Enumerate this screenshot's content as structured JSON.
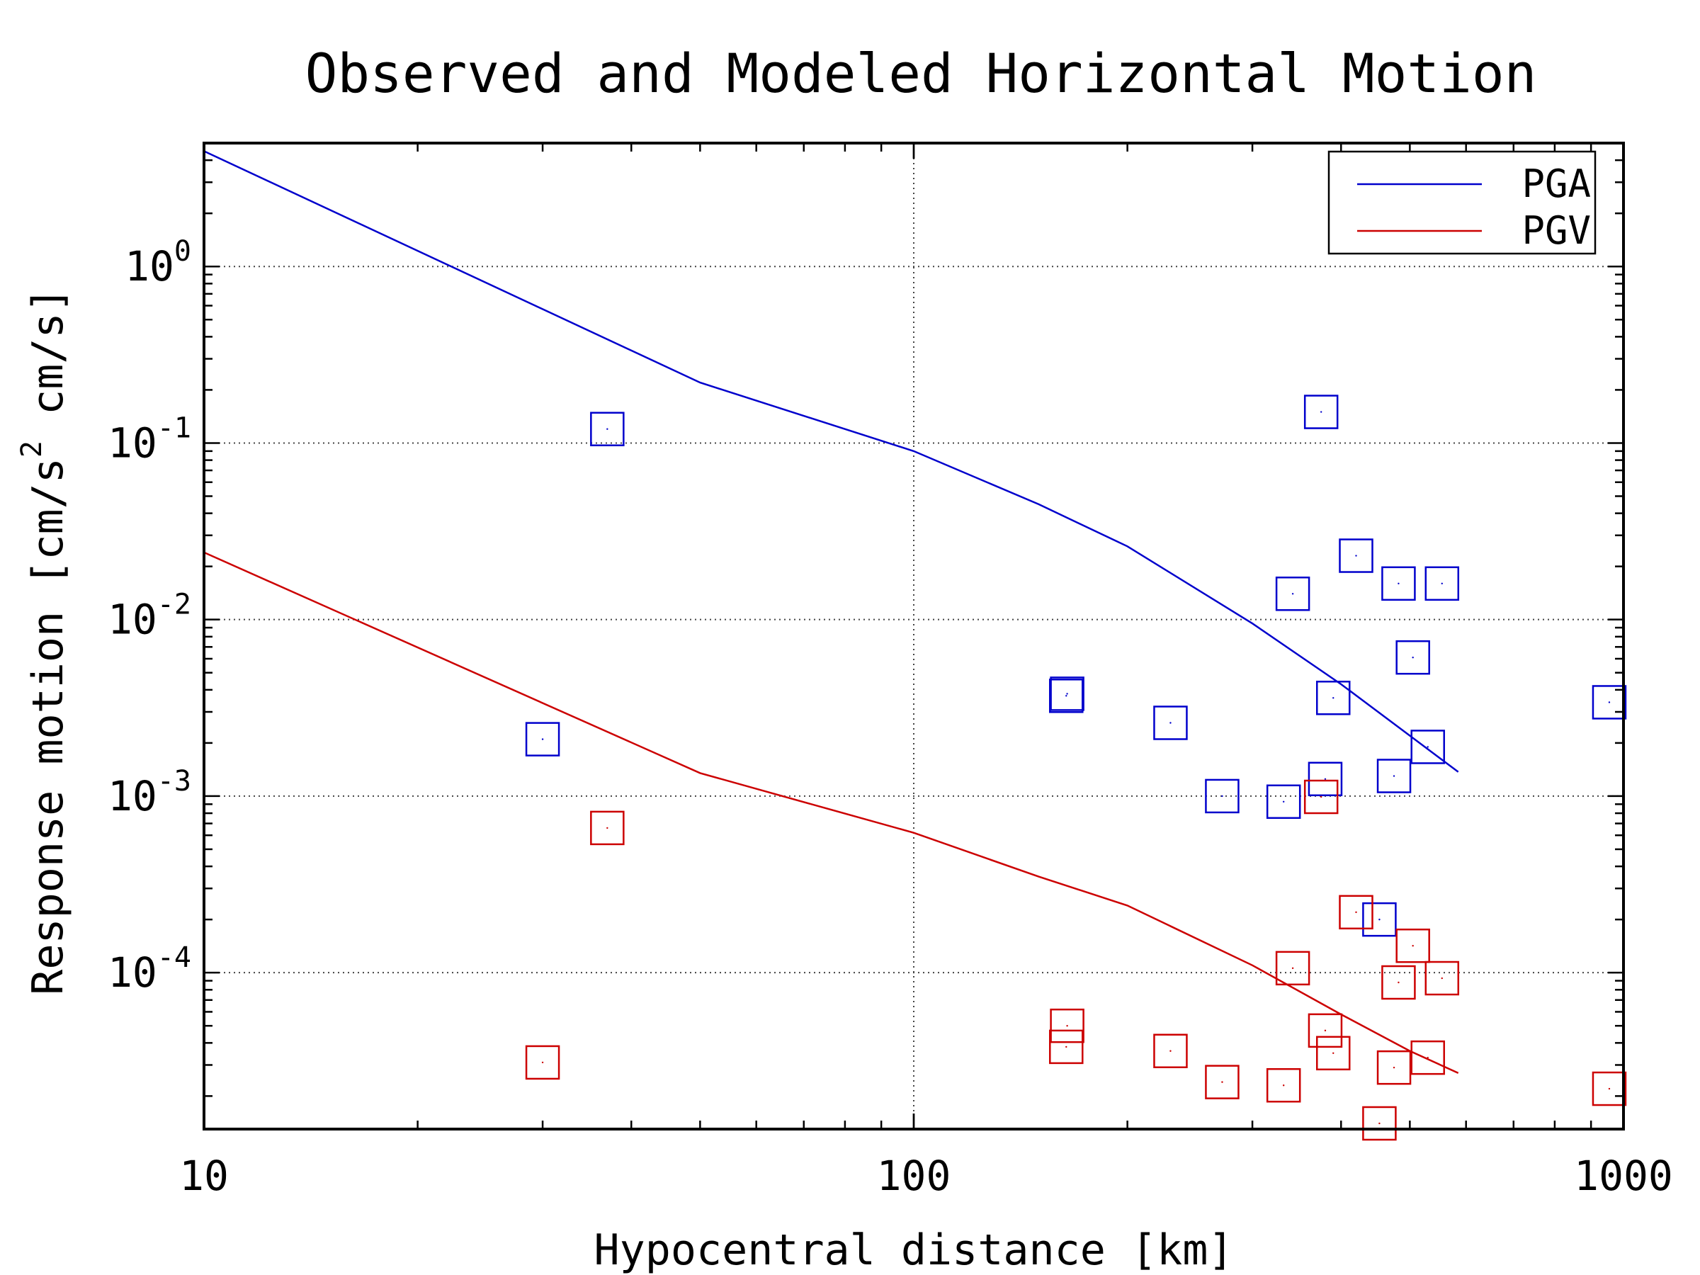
{
  "chart_data": {
    "type": "scatter",
    "title": "Observed and Modeled Horizontal Motion",
    "xlabel": "Hypocentral distance [km]",
    "ylabel_parts": [
      "Response motion [cm/s",
      "2",
      " cm/s]"
    ],
    "xscale": "log",
    "yscale": "log",
    "xlim": [
      10,
      1000
    ],
    "ylim": [
      1.3e-05,
      5
    ],
    "x_ticks": [
      {
        "value": 10,
        "label": "10"
      },
      {
        "value": 100,
        "label": "100"
      },
      {
        "value": 1000,
        "label": "1000"
      }
    ],
    "y_ticks": [
      {
        "value": 1,
        "base": "10",
        "exp": "0"
      },
      {
        "value": 0.1,
        "base": "10",
        "exp": "-1"
      },
      {
        "value": 0.01,
        "base": "10",
        "exp": "-2"
      },
      {
        "value": 0.001,
        "base": "10",
        "exp": "-3"
      },
      {
        "value": 0.0001,
        "base": "10",
        "exp": "-4"
      }
    ],
    "grid": true,
    "legend_position": "top-right",
    "series": [
      {
        "name": "PGA",
        "color": "#0000cc",
        "model_curve": [
          {
            "x": 10,
            "y": 4.5
          },
          {
            "x": 50,
            "y": 0.22
          },
          {
            "x": 100,
            "y": 0.09
          },
          {
            "x": 150,
            "y": 0.045
          },
          {
            "x": 200,
            "y": 0.026
          },
          {
            "x": 300,
            "y": 0.0095
          },
          {
            "x": 400,
            "y": 0.0043
          },
          {
            "x": 500,
            "y": 0.0022
          },
          {
            "x": 585,
            "y": 0.00137
          }
        ],
        "observed": [
          {
            "x": 30,
            "y": 0.0021
          },
          {
            "x": 37,
            "y": 0.12
          },
          {
            "x": 164,
            "y": 0.0037
          },
          {
            "x": 164.5,
            "y": 0.0038
          },
          {
            "x": 230,
            "y": 0.0026
          },
          {
            "x": 272,
            "y": 0.001
          },
          {
            "x": 332,
            "y": 0.00093
          },
          {
            "x": 342,
            "y": 0.014
          },
          {
            "x": 375,
            "y": 0.15
          },
          {
            "x": 380,
            "y": 0.00125
          },
          {
            "x": 390,
            "y": 0.0036
          },
          {
            "x": 420,
            "y": 0.023
          },
          {
            "x": 453,
            "y": 0.0002
          },
          {
            "x": 475,
            "y": 0.0013
          },
          {
            "x": 482,
            "y": 0.016
          },
          {
            "x": 505,
            "y": 0.0061
          },
          {
            "x": 530,
            "y": 0.0019
          },
          {
            "x": 555,
            "y": 0.016
          },
          {
            "x": 955,
            "y": 0.0034
          }
        ]
      },
      {
        "name": "PGV",
        "color": "#cc0000",
        "model_curve": [
          {
            "x": 10,
            "y": 0.024
          },
          {
            "x": 50,
            "y": 0.00135
          },
          {
            "x": 100,
            "y": 0.00062
          },
          {
            "x": 150,
            "y": 0.00035
          },
          {
            "x": 200,
            "y": 0.00024
          },
          {
            "x": 300,
            "y": 0.00011
          },
          {
            "x": 400,
            "y": 5.8e-05
          },
          {
            "x": 500,
            "y": 3.6e-05
          },
          {
            "x": 585,
            "y": 2.7e-05
          }
        ],
        "observed": [
          {
            "x": 30,
            "y": 3.1e-05
          },
          {
            "x": 37,
            "y": 0.00066
          },
          {
            "x": 164,
            "y": 3.8e-05
          },
          {
            "x": 164.5,
            "y": 5e-05
          },
          {
            "x": 230,
            "y": 3.6e-05
          },
          {
            "x": 272,
            "y": 2.4e-05
          },
          {
            "x": 332,
            "y": 2.3e-05
          },
          {
            "x": 342,
            "y": 0.000106
          },
          {
            "x": 375,
            "y": 0.00099
          },
          {
            "x": 380,
            "y": 4.7e-05
          },
          {
            "x": 390,
            "y": 3.5e-05
          },
          {
            "x": 420,
            "y": 0.00022
          },
          {
            "x": 453,
            "y": 1.4e-05
          },
          {
            "x": 475,
            "y": 2.9e-05
          },
          {
            "x": 482,
            "y": 8.8e-05
          },
          {
            "x": 505,
            "y": 0.000142
          },
          {
            "x": 530,
            "y": 3.3e-05
          },
          {
            "x": 555,
            "y": 9.3e-05
          },
          {
            "x": 955,
            "y": 2.2e-05
          }
        ]
      }
    ]
  }
}
